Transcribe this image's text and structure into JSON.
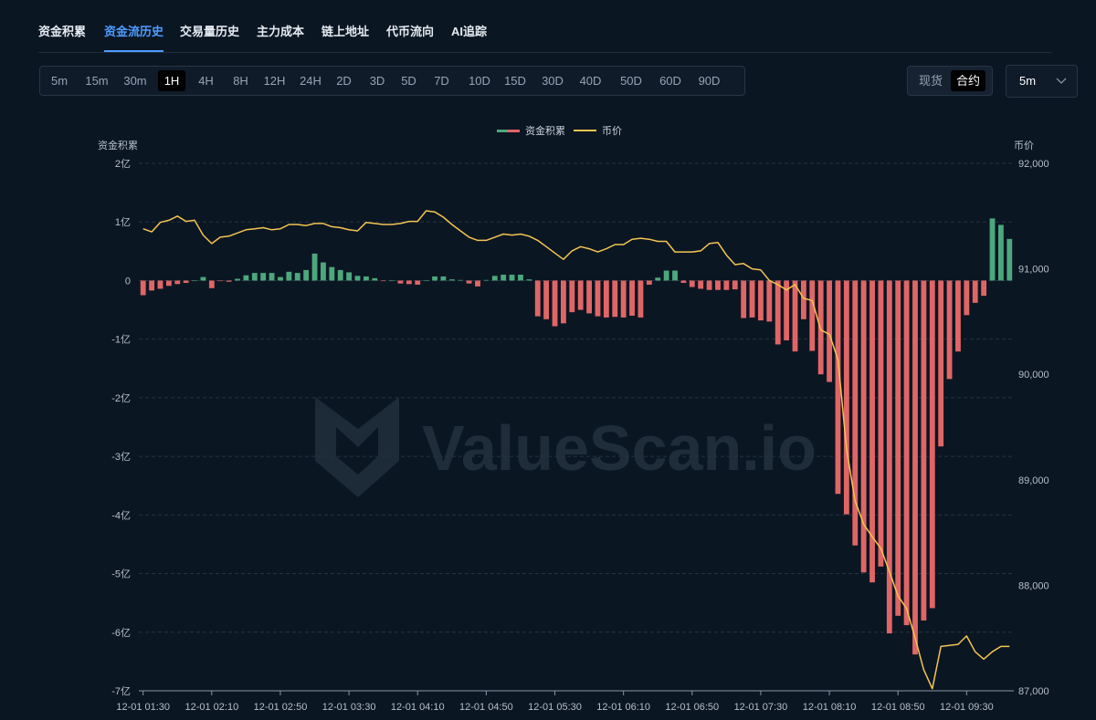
{
  "tabs": [
    {
      "label": "资金积累",
      "active": false
    },
    {
      "label": "资金流历史",
      "active": true
    },
    {
      "label": "交易量历史",
      "active": false
    },
    {
      "label": "主力成本",
      "active": false
    },
    {
      "label": "链上地址",
      "active": false
    },
    {
      "label": "代币流向",
      "active": false
    },
    {
      "label": "AI追踪",
      "active": false
    }
  ],
  "timeframes": [
    "5m",
    "15m",
    "30m",
    "1H",
    "4H",
    "8H",
    "12H",
    "24H",
    "2D",
    "3D",
    "5D",
    "7D",
    "10D",
    "15D",
    "30D",
    "40D",
    "50D",
    "60D",
    "90D"
  ],
  "active_timeframe": "1H",
  "market": {
    "options": [
      "现货",
      "合约"
    ],
    "active": "合约"
  },
  "interval_select": {
    "value": "5m",
    "icon": "chevron-down-icon"
  },
  "watermark": "ValueScan.io",
  "colors": {
    "positive": "#4ca87c",
    "negative": "#e06666",
    "price": "#f5c451",
    "accent": "#4d9dff"
  },
  "chart_data": {
    "type": "bar+line",
    "legend": [
      "资金积累",
      "币价"
    ],
    "legend_placement": "top-center",
    "y_left_label": "资金积累",
    "y_right_label": "币价",
    "y_left_ticks": [
      "2亿",
      "1亿",
      "0",
      "-1亿",
      "-2亿",
      "-3亿",
      "-4亿",
      "-5亿",
      "-6亿",
      "-7亿"
    ],
    "y_left_range": [
      -7,
      2
    ],
    "y_left_unit": "亿",
    "y_right_ticks": [
      "92,000",
      "91,000",
      "90,000",
      "89,000",
      "88,000",
      "87,000"
    ],
    "y_right_range": [
      87000,
      92000
    ],
    "x_tick_labels": [
      "12-01 01:30",
      "12-01 02:10",
      "12-01 02:50",
      "12-01 03:30",
      "12-01 04:10",
      "12-01 04:50",
      "12-01 05:30",
      "12-01 06:10",
      "12-01 06:50",
      "12-01 07:30",
      "12-01 08:10",
      "12-01 08:50",
      "12-01 09:30"
    ],
    "x_start": "12-01 01:30",
    "x_interval_minutes": 5,
    "grid": "horizontal-dashed",
    "series": [
      {
        "name": "资金积累",
        "type": "bar",
        "values": [
          -0.25,
          -0.17,
          -0.14,
          -0.09,
          -0.06,
          -0.04,
          0,
          0.06,
          -0.13,
          -0.01,
          -0.02,
          0.03,
          0.09,
          0.13,
          0.13,
          0.13,
          0.06,
          0.15,
          0.13,
          0.18,
          0.46,
          0.31,
          0.23,
          0.18,
          0.14,
          0.08,
          0.07,
          0.04,
          -0.01,
          0,
          -0.05,
          -0.06,
          -0.07,
          0,
          0.07,
          0.07,
          0.02,
          0.01,
          -0.05,
          -0.1,
          0.01,
          0.08,
          0.1,
          0.1,
          0.1,
          0.02,
          -0.61,
          -0.66,
          -0.78,
          -0.73,
          -0.54,
          -0.5,
          -0.56,
          -0.61,
          -0.63,
          -0.62,
          -0.63,
          -0.6,
          -0.63,
          -0.07,
          0.05,
          0.17,
          0.17,
          -0.04,
          -0.11,
          -0.14,
          -0.16,
          -0.16,
          -0.16,
          -0.15,
          -0.64,
          -0.63,
          -0.68,
          -0.7,
          -1.09,
          -1.02,
          -1.21,
          -0.66,
          -1.2,
          -1.6,
          -1.73,
          -3.64,
          -3.99,
          -4.52,
          -4.98,
          -5.15,
          -4.88,
          -6.02,
          -5.72,
          -5.88,
          -6.38,
          -5.8,
          -5.59,
          -2.83,
          -1.68,
          -1.21,
          -0.59,
          -0.38,
          -0.26,
          1.06,
          0.95,
          0.71
        ]
      },
      {
        "name": "币价",
        "type": "line",
        "values": [
          91380,
          91350,
          91440,
          91460,
          91500,
          91450,
          91460,
          91320,
          91240,
          91300,
          91310,
          91340,
          91370,
          91380,
          91390,
          91370,
          91380,
          91420,
          91420,
          91410,
          91430,
          91430,
          91400,
          91390,
          91370,
          91360,
          91440,
          91430,
          91420,
          91420,
          91430,
          91450,
          91450,
          91550,
          91540,
          91490,
          91420,
          91360,
          91300,
          91270,
          91270,
          91300,
          91330,
          91320,
          91330,
          91310,
          91270,
          91210,
          91150,
          91090,
          91170,
          91210,
          91190,
          91160,
          91190,
          91230,
          91230,
          91280,
          91290,
          91280,
          91260,
          91260,
          91160,
          91160,
          91160,
          91170,
          91240,
          91250,
          91130,
          91040,
          91050,
          91000,
          90990,
          90890,
          90850,
          90800,
          90850,
          90720,
          90700,
          90420,
          90380,
          90140,
          89290,
          88800,
          88580,
          88460,
          88350,
          88130,
          87900,
          87780,
          87500,
          87200,
          87020,
          87420,
          87430,
          87440,
          87520,
          87370,
          87300,
          87370,
          87420,
          87420
        ]
      }
    ]
  }
}
